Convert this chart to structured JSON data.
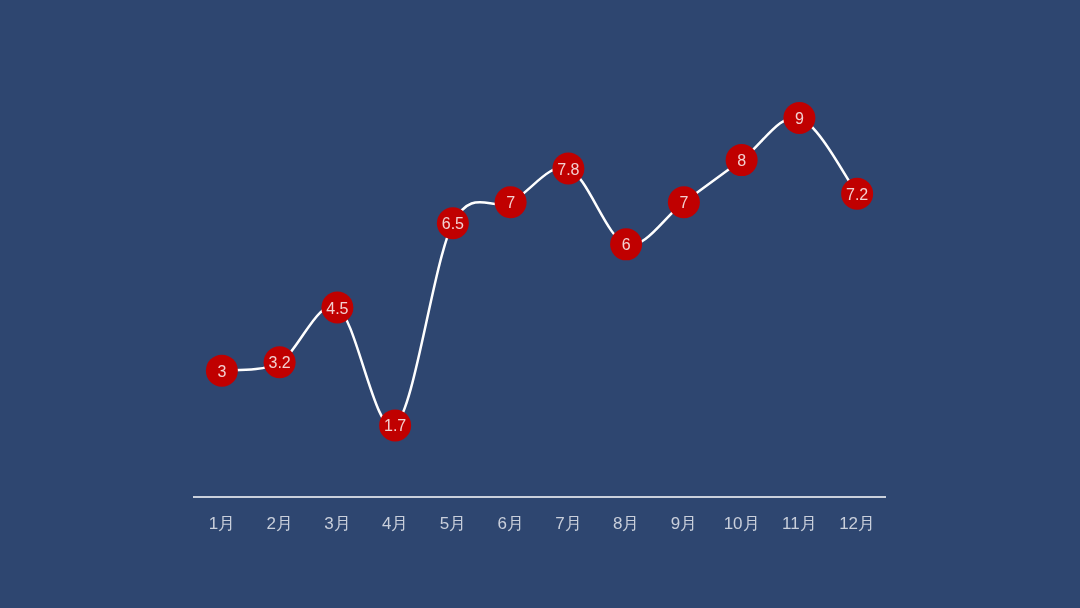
{
  "chart_data": {
    "type": "line",
    "categories": [
      "1月",
      "2月",
      "3月",
      "4月",
      "5月",
      "6月",
      "7月",
      "8月",
      "9月",
      "10月",
      "11月",
      "12月"
    ],
    "series": [
      {
        "color": "#c00000",
        "values": [
          3,
          3.2,
          4.5,
          1.7,
          6.5,
          7,
          7.8,
          6,
          7,
          8,
          9,
          7.2
        ]
      }
    ],
    "marker": "circle",
    "data_labels": true
  }
}
